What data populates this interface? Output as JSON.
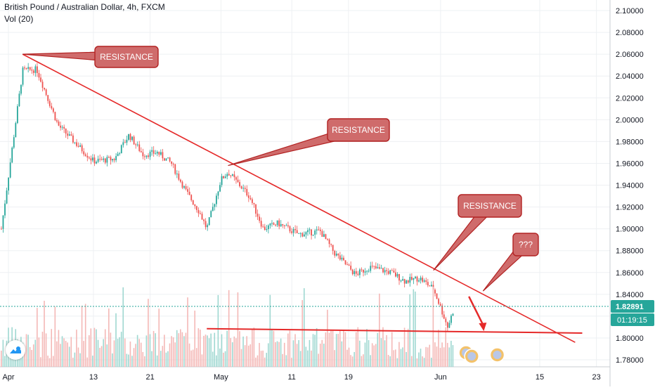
{
  "header": {
    "title": "British Pound / Australian Dollar, 4h, FXCM",
    "volume_label": "Vol (20)"
  },
  "chart_data": {
    "type": "candlestick",
    "symbol": "British Pound / Australian Dollar",
    "interval": "4h",
    "source": "FXCM",
    "x_tick_labels": [
      "Apr",
      "13",
      "21",
      "May",
      "11",
      "19",
      "Jun",
      "15",
      "23"
    ],
    "y_tick_labels": [
      "2.10000",
      "2.08000",
      "2.06000",
      "2.04000",
      "2.02000",
      "2.00000",
      "1.98000",
      "1.96000",
      "1.94000",
      "1.92000",
      "1.90000",
      "1.88000",
      "1.86000",
      "1.84000",
      "1.82000",
      "1.80000",
      "1.78000"
    ],
    "ylim": [
      1.775,
      2.11
    ],
    "price_path": [
      {
        "date": "2020-03-31",
        "close": 1.9
      },
      {
        "date": "2020-04-03",
        "close": 2.045
      },
      {
        "date": "2020-04-05",
        "close": 2.046
      },
      {
        "date": "2020-04-08",
        "close": 1.995
      },
      {
        "date": "2020-04-11",
        "close": 1.975
      },
      {
        "date": "2020-04-13",
        "close": 1.962
      },
      {
        "date": "2020-04-16",
        "close": 1.964
      },
      {
        "date": "2020-04-18",
        "close": 1.986
      },
      {
        "date": "2020-04-20",
        "close": 1.968
      },
      {
        "date": "2020-04-22",
        "close": 1.97
      },
      {
        "date": "2020-04-24",
        "close": 1.96
      },
      {
        "date": "2020-04-26",
        "close": 1.935
      },
      {
        "date": "2020-04-28",
        "close": 1.915
      },
      {
        "date": "2020-04-29",
        "close": 1.9
      },
      {
        "date": "2020-05-01",
        "close": 1.945
      },
      {
        "date": "2020-05-02",
        "close": 1.952
      },
      {
        "date": "2020-05-05",
        "close": 1.93
      },
      {
        "date": "2020-05-07",
        "close": 1.9
      },
      {
        "date": "2020-05-09",
        "close": 1.905
      },
      {
        "date": "2020-05-12",
        "close": 1.895
      },
      {
        "date": "2020-05-15",
        "close": 1.898
      },
      {
        "date": "2020-05-17",
        "close": 1.878
      },
      {
        "date": "2020-05-20",
        "close": 1.858
      },
      {
        "date": "2020-05-22",
        "close": 1.865
      },
      {
        "date": "2020-05-25",
        "close": 1.86
      },
      {
        "date": "2020-05-27",
        "close": 1.852
      },
      {
        "date": "2020-05-29",
        "close": 1.855
      },
      {
        "date": "2020-05-31",
        "close": 1.845
      },
      {
        "date": "2020-06-01",
        "close": 1.828
      },
      {
        "date": "2020-06-02",
        "close": 1.81
      },
      {
        "date": "2020-06-03",
        "close": 1.829
      }
    ],
    "current_price": {
      "value": 1.82891,
      "label": "1.82891",
      "countdown": "01:19:15"
    },
    "annotations": [
      {
        "text": "RESISTANCE"
      },
      {
        "text": "RESISTANCE"
      },
      {
        "text": "RESISTANCE"
      },
      {
        "text": "???"
      }
    ],
    "grid": true,
    "colors": {
      "up": "#26a69a",
      "down": "#ef5350",
      "volume_up": "#9fd8d1",
      "volume_down": "#f4b8b6",
      "trendline": "#e52a2a",
      "callout_fill": "#cf6b6b",
      "callout_border": "#b22222",
      "price_badge": "#26a69a"
    }
  }
}
